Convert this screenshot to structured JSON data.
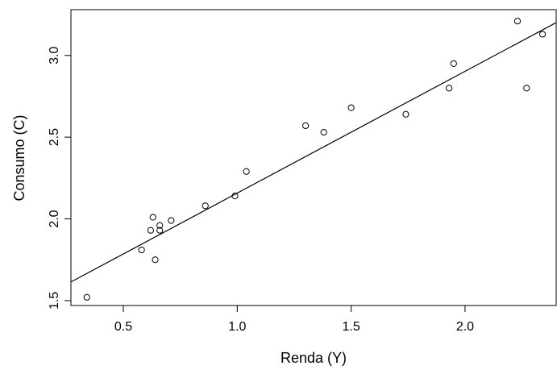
{
  "chart_data": {
    "type": "scatter",
    "title": "",
    "xlabel": "Renda (Y)",
    "ylabel": "Consumo (C)",
    "xlim": [
      0.27,
      2.4
    ],
    "ylim": [
      1.47,
      3.28
    ],
    "x_ticks": [
      0.5,
      1.0,
      1.5,
      2.0
    ],
    "x_tick_labels": [
      "0.5",
      "1.0",
      "1.5",
      "2.0"
    ],
    "y_ticks": [
      1.5,
      2.0,
      2.5,
      3.0
    ],
    "y_tick_labels": [
      "1.5",
      "2.0",
      "2.5",
      "3.0"
    ],
    "grid": false,
    "legend": "none",
    "marker": "open-circle",
    "points": [
      {
        "x": 0.34,
        "y": 1.52
      },
      {
        "x": 0.58,
        "y": 1.81
      },
      {
        "x": 0.62,
        "y": 1.93
      },
      {
        "x": 0.63,
        "y": 2.01
      },
      {
        "x": 0.64,
        "y": 1.75
      },
      {
        "x": 0.66,
        "y": 1.96
      },
      {
        "x": 0.66,
        "y": 1.93
      },
      {
        "x": 0.71,
        "y": 1.99
      },
      {
        "x": 0.86,
        "y": 2.08
      },
      {
        "x": 0.99,
        "y": 2.14
      },
      {
        "x": 1.04,
        "y": 2.29
      },
      {
        "x": 1.3,
        "y": 2.57
      },
      {
        "x": 1.38,
        "y": 2.53
      },
      {
        "x": 1.5,
        "y": 2.68
      },
      {
        "x": 1.74,
        "y": 2.64
      },
      {
        "x": 1.93,
        "y": 2.8
      },
      {
        "x": 1.95,
        "y": 2.95
      },
      {
        "x": 2.23,
        "y": 3.21
      },
      {
        "x": 2.27,
        "y": 2.8
      },
      {
        "x": 2.34,
        "y": 3.13
      }
    ],
    "fit_line": {
      "intercept": 1.413,
      "slope": 0.745
    }
  }
}
